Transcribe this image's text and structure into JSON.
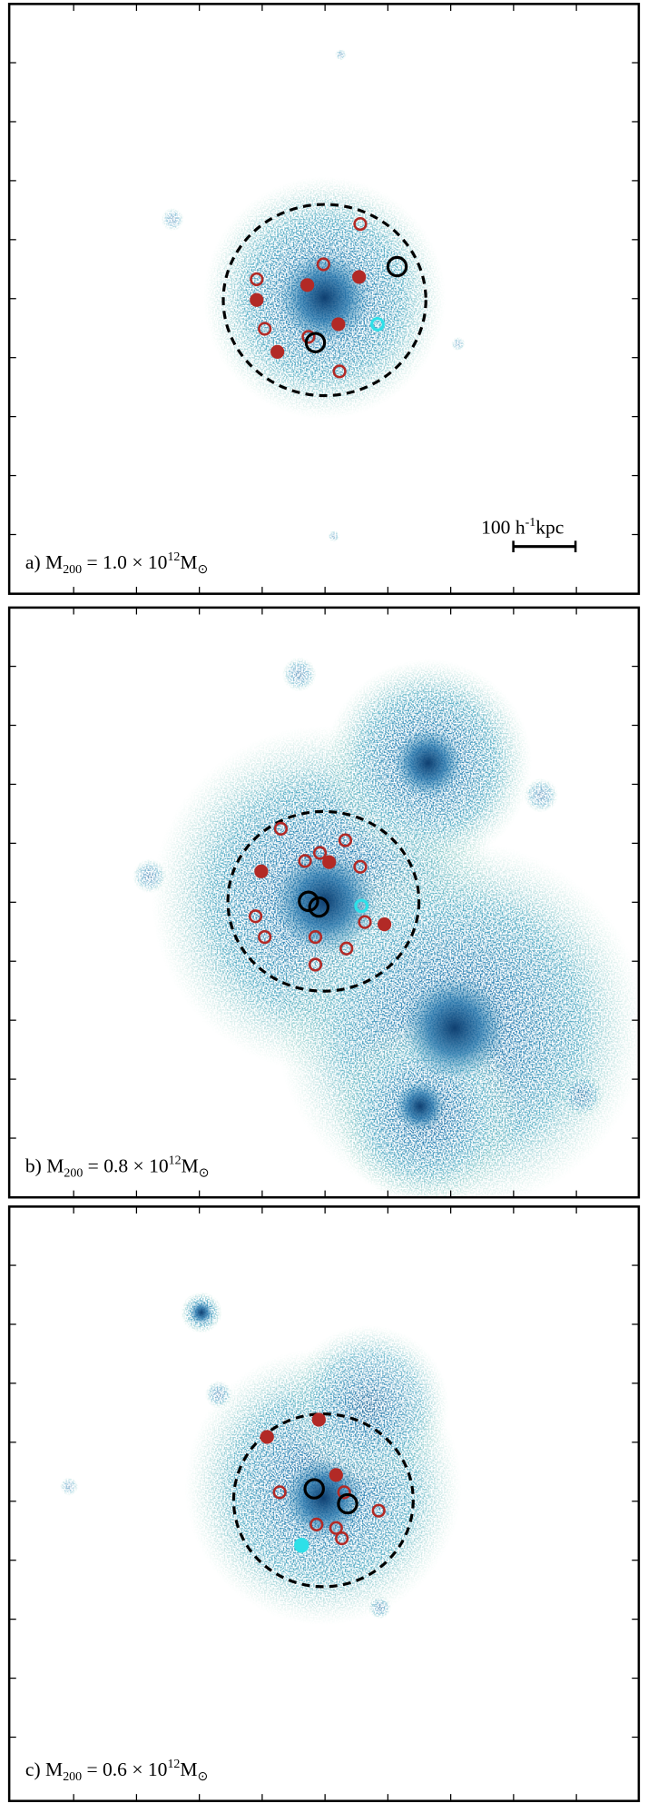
{
  "panels": [
    {
      "label": {
        "prefix": "a) M",
        "sub": "200",
        "mid": " = 1.0 × 10",
        "sup": "12",
        "unit": "M",
        "unit_sub": "⊙"
      }
    },
    {
      "label": {
        "prefix": "b) M",
        "sub": "200",
        "mid": " = 0.8 × 10",
        "sup": "12",
        "unit": "M",
        "unit_sub": "⊙"
      }
    },
    {
      "label": {
        "prefix": "c) M",
        "sub": "200",
        "mid": " = 0.6 × 10",
        "sup": "12",
        "unit": "M",
        "unit_sub": "⊙"
      }
    }
  ],
  "scale_bar": {
    "value": "100 h",
    "sup": "-1",
    "unit": "kpc"
  }
}
